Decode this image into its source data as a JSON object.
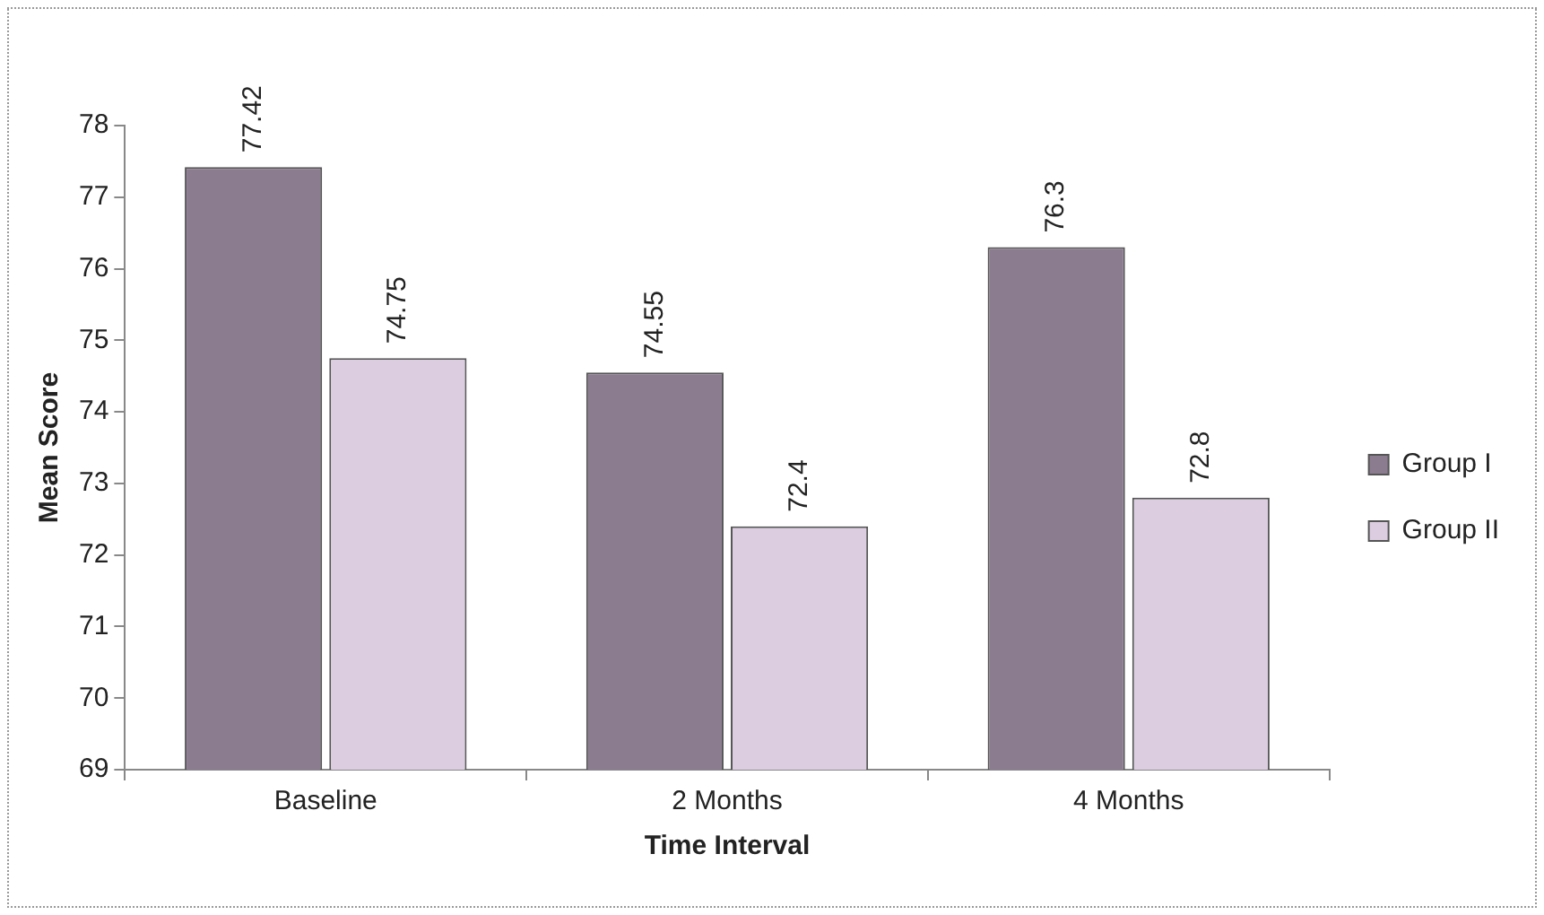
{
  "chart_data": {
    "type": "bar",
    "xlabel": "Time Interval",
    "ylabel": "Mean Score",
    "categories": [
      "Baseline",
      "2 Months",
      "4 Months"
    ],
    "series": [
      {
        "name": "Group I",
        "color": "#8c7c90",
        "values": [
          77.42,
          74.55,
          76.3
        ]
      },
      {
        "name": "Group II",
        "color": "#dccde0",
        "values": [
          74.75,
          72.4,
          72.8
        ]
      }
    ],
    "ylim": [
      69,
      78
    ],
    "yticks": [
      69,
      70,
      71,
      72,
      73,
      74,
      75,
      76,
      77,
      78
    ],
    "grid": false,
    "legend": "right",
    "data_labels": true
  }
}
